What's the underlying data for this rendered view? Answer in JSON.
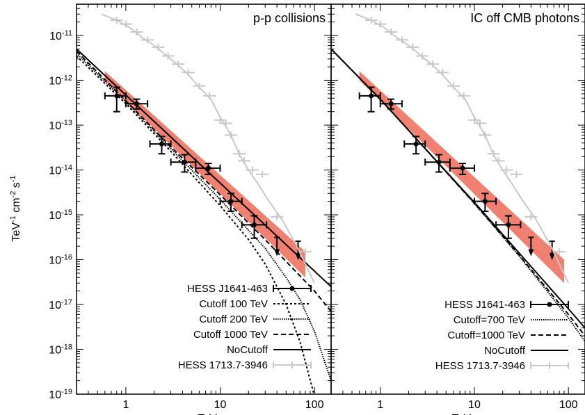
{
  "ylabel": "TeV-1 cm-2 s-1",
  "chart_data": [
    {
      "type": "line",
      "title": "p-p collisions",
      "xlabel": "TeV",
      "ylabel": "TeV-1 cm-2 s-1",
      "xscale": "log",
      "yscale": "log",
      "xlim": [
        0.3,
        150
      ],
      "ylim": [
        1e-19,
        5e-11
      ],
      "x_tick_labels": [
        "1",
        "10",
        "100"
      ],
      "y_tick_labels": [
        {
          "base": "10",
          "exp": "-19"
        },
        {
          "base": "10",
          "exp": "-18"
        },
        {
          "base": "10",
          "exp": "-17"
        },
        {
          "base": "10",
          "exp": "-16"
        },
        {
          "base": "10",
          "exp": "-15"
        },
        {
          "base": "10",
          "exp": "-14"
        },
        {
          "base": "10",
          "exp": "-13"
        },
        {
          "base": "10",
          "exp": "-12"
        },
        {
          "base": "10",
          "exp": "-11"
        }
      ],
      "legend_position": "bottom-left",
      "band": {
        "color": "#f08070",
        "x": [
          0.6,
          80
        ],
        "upper": [
          1.6e-12,
          1.5e-16
        ],
        "lower": [
          1e-12,
          4e-17
        ]
      },
      "series": [
        {
          "name": "HESS J1641-463",
          "style": "points",
          "color": "#000000",
          "points": [
            {
              "x": 0.8,
              "y": 4.5e-13,
              "xlo": 0.6,
              "xhi": 1.0,
              "ylo": 2e-13,
              "yhi": 7e-13
            },
            {
              "x": 1.3,
              "y": 3e-13,
              "xlo": 1.0,
              "xhi": 1.7,
              "ylo": 2.3e-13,
              "yhi": 3.8e-13
            },
            {
              "x": 2.4,
              "y": 3.8e-14,
              "xlo": 1.8,
              "xhi": 3.0,
              "ylo": 2.3e-14,
              "yhi": 5.6e-14
            },
            {
              "x": 4.2,
              "y": 1.5e-14,
              "xlo": 3.0,
              "xhi": 5.5,
              "ylo": 9e-15,
              "yhi": 2.2e-14
            },
            {
              "x": 7.5,
              "y": 1.1e-14,
              "xlo": 5.5,
              "xhi": 10.0,
              "ylo": 8e-15,
              "yhi": 1.4e-14
            },
            {
              "x": 13,
              "y": 2e-15,
              "xlo": 10.0,
              "xhi": 17.0,
              "ylo": 1.2e-15,
              "yhi": 3e-15
            },
            {
              "x": 23,
              "y": 6e-16,
              "xlo": 17.0,
              "xhi": 31.0,
              "ylo": 3e-16,
              "yhi": 9.5e-16
            }
          ],
          "upper_limits": [
            {
              "x": 40,
              "y": 2.2e-16
            },
            {
              "x": 67,
              "y": 1.8e-16
            }
          ]
        },
        {
          "name": "Cutoff 100 TeV",
          "style": "dotted-dense",
          "color": "#000000",
          "x": [
            0.3,
            1,
            3,
            10,
            20,
            30,
            50,
            70,
            100,
            120
          ],
          "y": [
            3.5e-12,
            3e-13,
            2.6e-14,
            1.6e-15,
            2.8e-16,
            8e-17,
            1e-17,
            1.5e-18,
            9e-20,
            2e-20
          ]
        },
        {
          "name": "Cutoff 200 TeV",
          "style": "dotted-fine",
          "color": "#000000",
          "x": [
            0.3,
            1,
            3,
            10,
            20,
            30,
            50,
            70,
            100,
            150
          ],
          "y": [
            4e-12,
            3.3e-13,
            3e-14,
            2.2e-15,
            4.5e-16,
            1.8e-16,
            4e-17,
            1.3e-17,
            2.5e-18,
            2e-19
          ]
        },
        {
          "name": "Cutoff 1000 TeV",
          "style": "dashed",
          "color": "#000000",
          "x": [
            0.3,
            1,
            3,
            10,
            30,
            100,
            150
          ],
          "y": [
            4.5e-12,
            3.5e-13,
            3.3e-14,
            2.8e-15,
            2.8e-16,
            2e-17,
            7e-18
          ]
        },
        {
          "name": "NoCutoff",
          "style": "solid",
          "color": "#000000",
          "x": [
            0.3,
            150
          ],
          "y": [
            5e-12,
            2.5e-17
          ]
        },
        {
          "name": "HESS 1713.7-3946",
          "style": "gray-points-line",
          "color": "#c8c8c8",
          "x": [
            0.55,
            0.8,
            1.1,
            1.5,
            2.0,
            2.6,
            3.4,
            4.5,
            6,
            8,
            10,
            13,
            16,
            20,
            25,
            32,
            45,
            65,
            100
          ],
          "y": [
            3e-11,
            2.2e-11,
            1.5e-11,
            9e-12,
            6e-12,
            3.8e-12,
            2.4e-12,
            1.4e-12,
            7e-13,
            3.8e-13,
            1.5e-13,
            6e-14,
            2.2e-14,
            1e-14,
            5e-15,
            2.2e-15,
            8e-16,
            2e-16,
            3e-17
          ],
          "points": [
            {
              "x": 0.8,
              "y": 2.2e-11
            },
            {
              "x": 1.0,
              "y": 1.8e-11
            },
            {
              "x": 1.3,
              "y": 1.2e-11
            },
            {
              "x": 1.7,
              "y": 8e-12
            },
            {
              "x": 2.2,
              "y": 5.5e-12
            },
            {
              "x": 2.8,
              "y": 3.5e-12
            },
            {
              "x": 3.6,
              "y": 2.3e-12
            },
            {
              "x": 4.6,
              "y": 1.5e-12
            },
            {
              "x": 6.0,
              "y": 7.5e-13
            },
            {
              "x": 7.7,
              "y": 4.5e-13
            },
            {
              "x": 10,
              "y": 1.3e-13
            },
            {
              "x": 11.5,
              "y": 1.1e-13
            },
            {
              "x": 13,
              "y": 6e-14
            },
            {
              "x": 16,
              "y": 2.3e-14
            },
            {
              "x": 18,
              "y": 1.6e-14
            },
            {
              "x": 22,
              "y": 1e-14
            },
            {
              "x": 28,
              "y": 8e-15
            },
            {
              "x": 40,
              "y": 9e-16
            },
            {
              "x": 80,
              "y": 1.5e-16
            }
          ]
        }
      ]
    },
    {
      "type": "line",
      "title": "IC off CMB photons",
      "xlabel": "TeV",
      "xscale": "log",
      "yscale": "log",
      "xlim": [
        0.3,
        150
      ],
      "ylim": [
        1e-19,
        5e-11
      ],
      "x_tick_labels": [
        "1",
        "10",
        "100"
      ],
      "legend_position": "bottom-right",
      "band": {
        "color": "#f08070",
        "x": [
          0.6,
          90
        ],
        "upper": [
          1.6e-12,
          1e-16
        ],
        "lower": [
          1e-12,
          3e-17
        ]
      },
      "series": [
        {
          "name": "HESS J1641-463",
          "style": "points",
          "color": "#000000",
          "points": [
            {
              "x": 0.8,
              "y": 4.5e-13,
              "xlo": 0.6,
              "xhi": 1.0,
              "ylo": 2e-13,
              "yhi": 7e-13
            },
            {
              "x": 1.3,
              "y": 3e-13,
              "xlo": 1.0,
              "xhi": 1.7,
              "ylo": 2.3e-13,
              "yhi": 3.8e-13
            },
            {
              "x": 2.4,
              "y": 3.8e-14,
              "xlo": 1.8,
              "xhi": 3.0,
              "ylo": 2.3e-14,
              "yhi": 5.6e-14
            },
            {
              "x": 4.2,
              "y": 1.5e-14,
              "xlo": 3.0,
              "xhi": 5.5,
              "ylo": 9e-15,
              "yhi": 2.2e-14
            },
            {
              "x": 7.5,
              "y": 1.1e-14,
              "xlo": 5.5,
              "xhi": 10.0,
              "ylo": 8e-15,
              "yhi": 1.4e-14
            },
            {
              "x": 13,
              "y": 2e-15,
              "xlo": 10.0,
              "xhi": 17.0,
              "ylo": 1.2e-15,
              "yhi": 3e-15
            },
            {
              "x": 23,
              "y": 6e-16,
              "xlo": 17.0,
              "xhi": 31.0,
              "ylo": 3e-16,
              "yhi": 9.5e-16
            }
          ],
          "upper_limits": [
            {
              "x": 40,
              "y": 2.2e-16
            },
            {
              "x": 67,
              "y": 1.8e-16
            }
          ]
        },
        {
          "name": "Cutoff=700 TeV",
          "style": "dotted-fine",
          "color": "#000000",
          "x": [
            0.3,
            1,
            3,
            10,
            30,
            100,
            150
          ],
          "y": [
            5e-12,
            3.8e-13,
            3e-14,
            1.8e-15,
            1.2e-16,
            5e-18,
            1.5e-18
          ]
        },
        {
          "name": "Cutoff=1000 TeV",
          "style": "dashed",
          "color": "#000000",
          "x": [
            0.3,
            1,
            3,
            10,
            30,
            100,
            150
          ],
          "y": [
            5e-12,
            3.8e-13,
            3e-14,
            1.8e-15,
            1.25e-16,
            6e-18,
            2e-18
          ]
        },
        {
          "name": "NoCutoff",
          "style": "solid",
          "color": "#000000",
          "x": [
            0.3,
            1,
            3,
            10,
            30,
            100,
            150
          ],
          "y": [
            5e-12,
            3.8e-13,
            3e-14,
            1.9e-15,
            1.4e-16,
            8e-18,
            3e-18
          ]
        },
        {
          "name": "HESS 1713.7-3946",
          "style": "gray-points-line",
          "color": "#c8c8c8",
          "x": [
            0.55,
            0.8,
            1.1,
            1.5,
            2.0,
            2.6,
            3.4,
            4.5,
            6,
            8,
            10,
            13,
            16,
            20,
            25,
            32,
            45,
            65,
            100
          ],
          "y": [
            3e-11,
            2.2e-11,
            1.5e-11,
            9e-12,
            6e-12,
            3.8e-12,
            2.4e-12,
            1.4e-12,
            7e-13,
            3.8e-13,
            1.5e-13,
            6e-14,
            2.2e-14,
            1e-14,
            5e-15,
            2.2e-15,
            8e-16,
            2e-16,
            3e-17
          ],
          "points": [
            {
              "x": 0.8,
              "y": 2.2e-11
            },
            {
              "x": 1.0,
              "y": 1.8e-11
            },
            {
              "x": 1.3,
              "y": 1.2e-11
            },
            {
              "x": 1.7,
              "y": 8e-12
            },
            {
              "x": 2.2,
              "y": 5.5e-12
            },
            {
              "x": 2.8,
              "y": 3.5e-12
            },
            {
              "x": 3.6,
              "y": 2.3e-12
            },
            {
              "x": 4.6,
              "y": 1.5e-12
            },
            {
              "x": 6.0,
              "y": 7.5e-13
            },
            {
              "x": 7.7,
              "y": 4.5e-13
            },
            {
              "x": 10,
              "y": 1.3e-13
            },
            {
              "x": 11.5,
              "y": 1.1e-13
            },
            {
              "x": 13,
              "y": 6e-14
            },
            {
              "x": 16,
              "y": 2.3e-14
            },
            {
              "x": 18,
              "y": 1.6e-14
            },
            {
              "x": 22,
              "y": 1e-14
            },
            {
              "x": 28,
              "y": 8e-15
            },
            {
              "x": 40,
              "y": 9e-16
            },
            {
              "x": 80,
              "y": 1.5e-16
            }
          ]
        }
      ]
    }
  ]
}
